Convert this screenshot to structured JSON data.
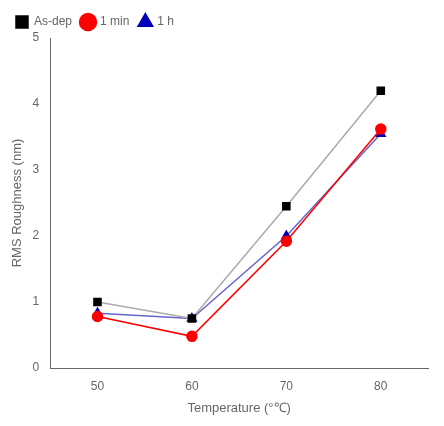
{
  "chart_data": {
    "type": "line",
    "x": [
      50,
      60,
      70,
      80
    ],
    "series": [
      {
        "name": "As-dep",
        "values": [
          1.0,
          0.75,
          2.45,
          4.2
        ],
        "color": "#aaaaaa",
        "colors": [
          "#000000",
          "#000000",
          "#000000",
          "#000000"
        ],
        "marker": "square"
      },
      {
        "name": "1 min",
        "values": [
          0.78,
          0.48,
          1.92,
          3.62
        ],
        "color": "#ff0000",
        "colors": [
          "#ff0000",
          "#ff0000",
          "#ff0000",
          "#ff0000"
        ],
        "marker": "circle"
      },
      {
        "name": "1 h",
        "values": [
          0.83,
          0.75,
          2.0,
          3.55
        ],
        "color": "#6666cc",
        "colors": [
          "#0000bb",
          "#0000bb",
          "#0000bb",
          "#0000bb"
        ],
        "marker": "triangle"
      }
    ],
    "x_label": "Temperature (°℃)",
    "y_label": "RMS Roughness (nm)",
    "xlim": [
      45,
      85
    ],
    "ylim": [
      0,
      5
    ],
    "xticks": [
      50,
      60,
      70,
      80
    ],
    "yticks": [
      0,
      1,
      2,
      3,
      4,
      5
    ],
    "legend": "upper left",
    "grid": false
  }
}
